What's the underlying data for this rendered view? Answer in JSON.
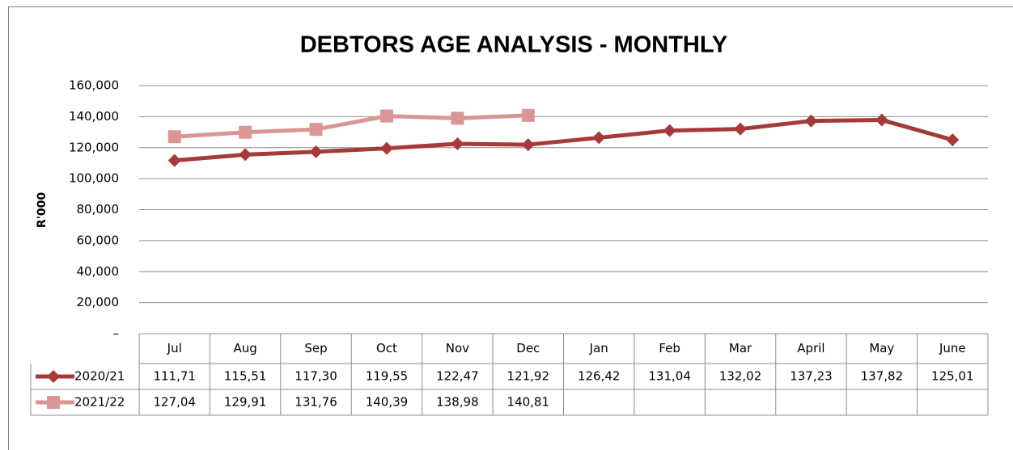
{
  "chart_data": {
    "type": "line",
    "title": "DEBTORS AGE ANALYSIS - MONTHLY",
    "y_label": "R'000",
    "categories": [
      "Jul",
      "Aug",
      "Sep",
      "Oct",
      "Nov",
      "Dec",
      "Jan",
      "Feb",
      "Mar",
      "April",
      "May",
      "June"
    ],
    "series": [
      {
        "name": "2020/21",
        "color": "#a63a3a",
        "marker": "diamond",
        "values": [
          111710,
          115510,
          117300,
          119550,
          122470,
          121920,
          126420,
          131040,
          132020,
          137230,
          137820,
          125010
        ],
        "value_labels": [
          "111,71",
          "115,51",
          "117,30",
          "119,55",
          "122,47",
          "121,92",
          "126,42",
          "131,04",
          "132,02",
          "137,23",
          "137,82",
          "125,01"
        ]
      },
      {
        "name": "2021/22",
        "color": "#d99694",
        "marker": "square",
        "values": [
          127040,
          129910,
          131760,
          140390,
          138980,
          140810,
          null,
          null,
          null,
          null,
          null,
          null
        ],
        "value_labels": [
          "127,04",
          "129,91",
          "131,76",
          "140,39",
          "138,98",
          "140,81",
          null,
          null,
          null,
          null,
          null,
          null
        ]
      }
    ],
    "ylim": [
      0,
      160000
    ],
    "yticks": [
      {
        "value": 0,
        "label": "–"
      },
      {
        "value": 20000,
        "label": "20,000"
      },
      {
        "value": 40000,
        "label": "40,000"
      },
      {
        "value": 60000,
        "label": "60,000"
      },
      {
        "value": 80000,
        "label": "80,000"
      },
      {
        "value": 100000,
        "label": "100,000"
      },
      {
        "value": 120000,
        "label": "120,000"
      },
      {
        "value": 140000,
        "label": "140,000"
      },
      {
        "value": 160000,
        "label": "160,000"
      }
    ],
    "grid": true,
    "data_table": true
  }
}
